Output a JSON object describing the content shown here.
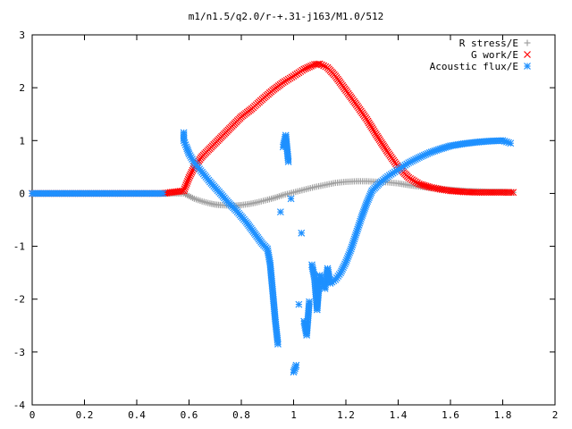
{
  "chart_data": {
    "type": "scatter",
    "title": "m1/n1.5/q2.0/r-+.31-j163/M1.0/512",
    "xlabel": "",
    "ylabel": "",
    "xlim": [
      0,
      2
    ],
    "ylim": [
      -4,
      3
    ],
    "x_ticks": [
      "0",
      "0.2",
      "0.4",
      "0.6",
      "0.8",
      "1",
      "1.2",
      "1.4",
      "1.6",
      "1.8",
      "2"
    ],
    "y_ticks": [
      "3",
      "2",
      "1",
      "0",
      "-1",
      "-2",
      "-3",
      "-4"
    ],
    "x_tick_values": [
      0,
      0.2,
      0.4,
      0.6,
      0.8,
      1.0,
      1.2,
      1.4,
      1.6,
      1.8,
      2.0
    ],
    "y_tick_values": [
      3,
      2,
      1,
      0,
      -1,
      -2,
      -3,
      -4
    ],
    "legend_position": "top-right",
    "grid": false,
    "series": [
      {
        "name": "R stress/E",
        "marker": "plus",
        "color": "#a0a0a0",
        "x": [
          0.0,
          0.1,
          0.2,
          0.3,
          0.4,
          0.5,
          0.58,
          0.6,
          0.62,
          0.65,
          0.68,
          0.7,
          0.72,
          0.75,
          0.78,
          0.8,
          0.83,
          0.86,
          0.9,
          0.93,
          0.96,
          1.0,
          1.04,
          1.08,
          1.12,
          1.16,
          1.2,
          1.24,
          1.28,
          1.32,
          1.36,
          1.4,
          1.45,
          1.5,
          1.55,
          1.6,
          1.65,
          1.7,
          1.75,
          1.8,
          1.84
        ],
        "y": [
          0.0,
          0.0,
          0.0,
          0.0,
          0.0,
          0.0,
          0.0,
          -0.05,
          -0.1,
          -0.15,
          -0.19,
          -0.21,
          -0.22,
          -0.23,
          -0.23,
          -0.22,
          -0.2,
          -0.17,
          -0.12,
          -0.08,
          -0.03,
          0.02,
          0.07,
          0.12,
          0.16,
          0.2,
          0.22,
          0.23,
          0.23,
          0.22,
          0.21,
          0.19,
          0.15,
          0.12,
          0.09,
          0.07,
          0.05,
          0.04,
          0.03,
          0.03,
          0.02
        ]
      },
      {
        "name": "G work/E",
        "marker": "cross",
        "color": "#ff0000",
        "x": [
          0.0,
          0.1,
          0.2,
          0.3,
          0.4,
          0.5,
          0.58,
          0.6,
          0.62,
          0.65,
          0.68,
          0.72,
          0.76,
          0.8,
          0.84,
          0.88,
          0.92,
          0.96,
          1.0,
          1.04,
          1.08,
          1.1,
          1.13,
          1.16,
          1.2,
          1.24,
          1.28,
          1.32,
          1.36,
          1.4,
          1.44,
          1.48,
          1.52,
          1.56,
          1.6,
          1.65,
          1.7,
          1.75,
          1.8,
          1.84
        ],
        "y": [
          0.0,
          0.0,
          0.0,
          0.0,
          0.0,
          0.0,
          0.05,
          0.3,
          0.5,
          0.7,
          0.85,
          1.05,
          1.25,
          1.45,
          1.6,
          1.78,
          1.95,
          2.1,
          2.22,
          2.35,
          2.44,
          2.45,
          2.38,
          2.22,
          1.95,
          1.68,
          1.4,
          1.08,
          0.78,
          0.5,
          0.3,
          0.18,
          0.12,
          0.08,
          0.05,
          0.03,
          0.02,
          0.02,
          0.02,
          0.02
        ]
      },
      {
        "name": "Acoustic flux/E",
        "marker": "star",
        "color": "#1e90ff",
        "x": [
          0.0,
          0.1,
          0.2,
          0.3,
          0.4,
          0.5,
          0.58,
          0.58,
          0.59,
          0.6,
          0.62,
          0.65,
          0.68,
          0.72,
          0.75,
          0.78,
          0.82,
          0.85,
          0.88,
          0.9,
          0.91,
          0.92,
          0.93,
          0.94,
          0.95,
          0.96,
          0.97,
          0.98,
          0.99,
          1.0,
          1.01,
          1.02,
          1.03,
          1.04,
          1.05,
          1.06,
          1.07,
          1.08,
          1.09,
          1.1,
          1.11,
          1.12,
          1.13,
          1.14,
          1.16,
          1.18,
          1.2,
          1.22,
          1.24,
          1.26,
          1.28,
          1.3,
          1.33,
          1.36,
          1.4,
          1.44,
          1.48,
          1.52,
          1.56,
          1.6,
          1.65,
          1.7,
          1.75,
          1.8,
          1.83
        ],
        "y": [
          0.0,
          0.0,
          0.0,
          0.0,
          0.0,
          0.0,
          1.15,
          1.0,
          0.88,
          0.75,
          0.58,
          0.4,
          0.22,
          0.0,
          -0.17,
          -0.32,
          -0.55,
          -0.75,
          -0.95,
          -1.05,
          -1.32,
          -1.85,
          -2.4,
          -2.85,
          -0.35,
          0.88,
          1.1,
          0.6,
          -0.1,
          -3.38,
          -3.25,
          -2.1,
          -0.75,
          -2.42,
          -2.68,
          -2.05,
          -1.35,
          -1.6,
          -2.2,
          -1.55,
          -1.65,
          -1.8,
          -1.42,
          -1.7,
          -1.63,
          -1.5,
          -1.3,
          -1.05,
          -0.75,
          -0.45,
          -0.18,
          0.05,
          0.2,
          0.32,
          0.45,
          0.58,
          0.68,
          0.77,
          0.84,
          0.9,
          0.94,
          0.97,
          0.99,
          1.0,
          0.95
        ]
      }
    ]
  }
}
